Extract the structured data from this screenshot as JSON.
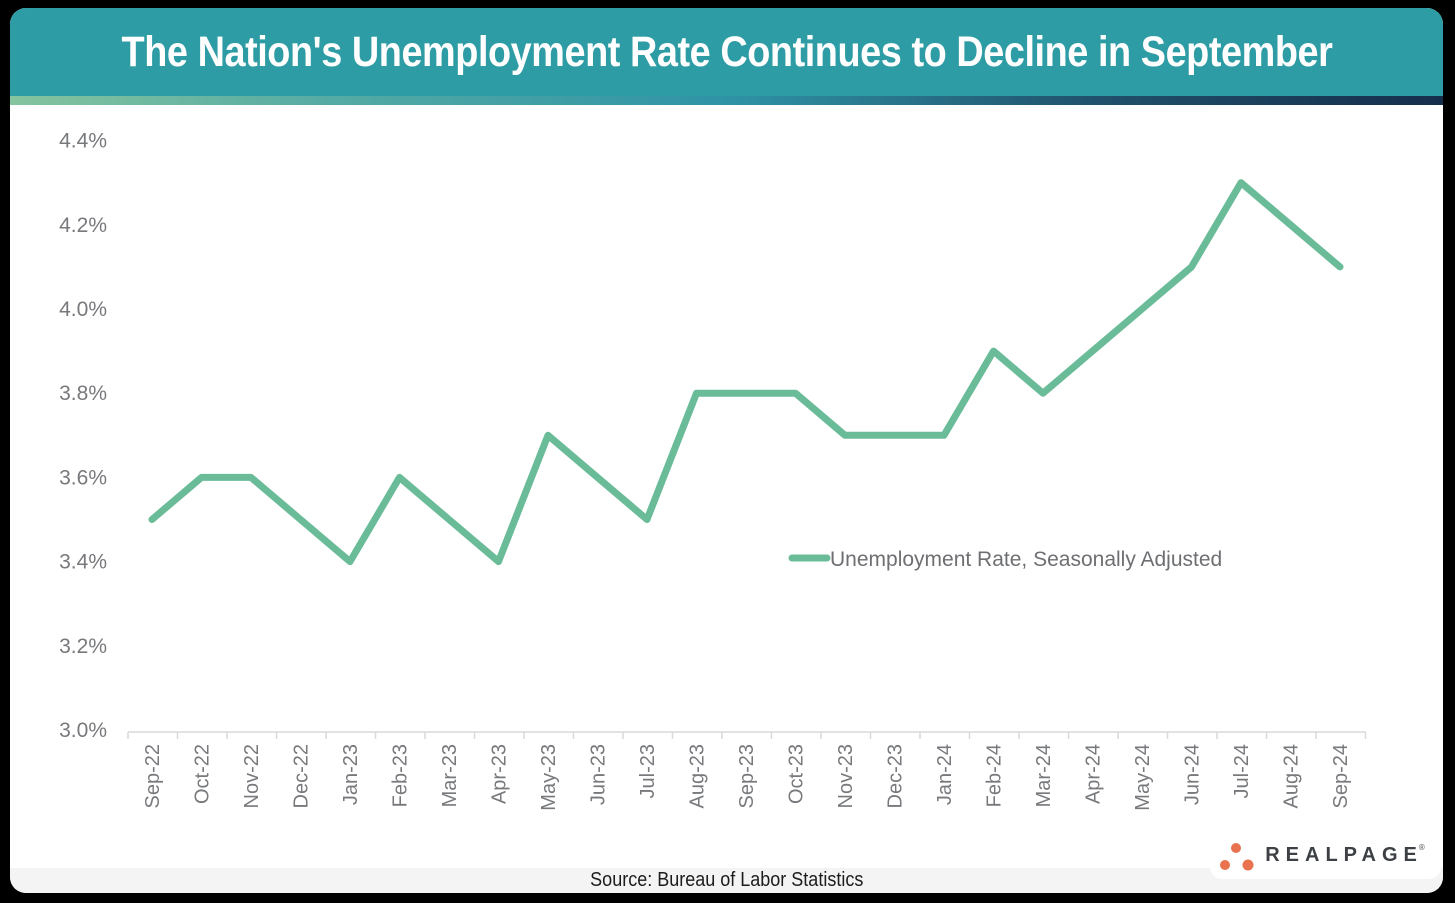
{
  "header": {
    "title": "The Nation's Unemployment Rate Continues to Decline in September"
  },
  "chart_data": {
    "type": "line",
    "title": "The Nation's Unemployment Rate Continues to Decline in September",
    "categories": [
      "Sep-22",
      "Oct-22",
      "Nov-22",
      "Dec-22",
      "Jan-23",
      "Feb-23",
      "Mar-23",
      "Apr-23",
      "May-23",
      "Jun-23",
      "Jul-23",
      "Aug-23",
      "Sep-23",
      "Oct-23",
      "Nov-23",
      "Dec-23",
      "Jan-24",
      "Feb-24",
      "Mar-24",
      "Apr-24",
      "May-24",
      "Jun-24",
      "Jul-24",
      "Aug-24",
      "Sep-24"
    ],
    "series": [
      {
        "name": "Unemployment Rate, Seasonally Adjusted",
        "values": [
          3.5,
          3.6,
          3.6,
          3.5,
          3.4,
          3.6,
          3.5,
          3.4,
          3.7,
          3.6,
          3.5,
          3.8,
          3.8,
          3.8,
          3.7,
          3.7,
          3.7,
          3.9,
          3.8,
          3.9,
          4.0,
          4.1,
          4.3,
          4.2,
          4.1
        ]
      }
    ],
    "legend": "Unemployment Rate, Seasonally Adjusted",
    "legend_position": "inside-right",
    "yticks": [
      3.0,
      3.2,
      3.4,
      3.6,
      3.8,
      4.0,
      4.2,
      4.4
    ],
    "ytick_labels": [
      "3.0%",
      "3.2%",
      "3.4%",
      "3.6%",
      "3.8%",
      "4.0%",
      "4.2%",
      "4.4%"
    ],
    "ylim": [
      3.0,
      4.4
    ],
    "xlabel": "",
    "ylabel": "",
    "grid": false,
    "line_color": "#6abc99"
  },
  "footer": {
    "source": "Source: Bureau of Labor Statistics"
  },
  "logo": {
    "text": "REALPAGE",
    "registered": "®"
  },
  "colors": {
    "background": "#000000",
    "header_bg": "#2d9ca4",
    "accent_line": "#6abc99",
    "gradient_left": "#85c49e",
    "gradient_mid": "#2f93a6",
    "gradient_right": "#152e4c",
    "axis_text": "#77797c",
    "source_band_bg": "#f4f4f4",
    "logo_dots": "#e8734e",
    "logo_text": "#3d4045"
  }
}
